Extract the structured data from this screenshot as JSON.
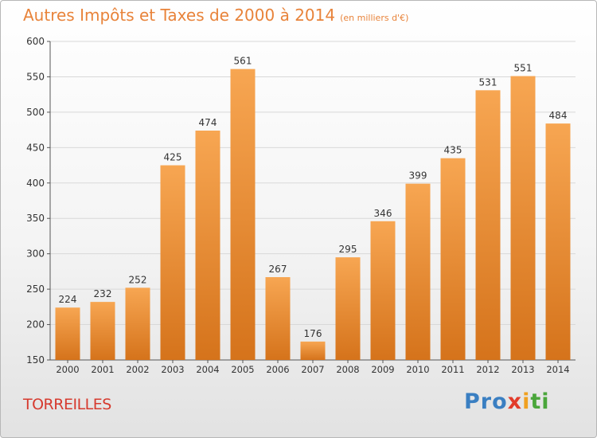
{
  "title": "Autres Impôts et Taxes de 2000 à 2014",
  "unit": "(en milliers d'€)",
  "commune": "TORREILLES",
  "logo": [
    "Pro",
    "x",
    "i",
    "ti"
  ],
  "colors": {
    "bar_top": "#f7a652",
    "bar_bottom": "#d5731b",
    "title": "#e8833a",
    "commune": "#d63a2e",
    "grid": "#d8d8d8"
  },
  "chart_data": {
    "type": "bar",
    "title": "Autres Impôts et Taxes de 2000 à 2014",
    "subtitle": "(en milliers d'€)",
    "categories": [
      "2000",
      "2001",
      "2002",
      "2003",
      "2004",
      "2005",
      "2006",
      "2007",
      "2008",
      "2009",
      "2010",
      "2011",
      "2012",
      "2013",
      "2014"
    ],
    "values": [
      224,
      232,
      252,
      425,
      474,
      561,
      267,
      176,
      295,
      346,
      399,
      435,
      531,
      551,
      484
    ],
    "ylim": [
      150,
      600
    ],
    "yticks": [
      150,
      200,
      250,
      300,
      350,
      400,
      450,
      500,
      550,
      600
    ],
    "grid": true,
    "xlabel": "",
    "ylabel": ""
  }
}
